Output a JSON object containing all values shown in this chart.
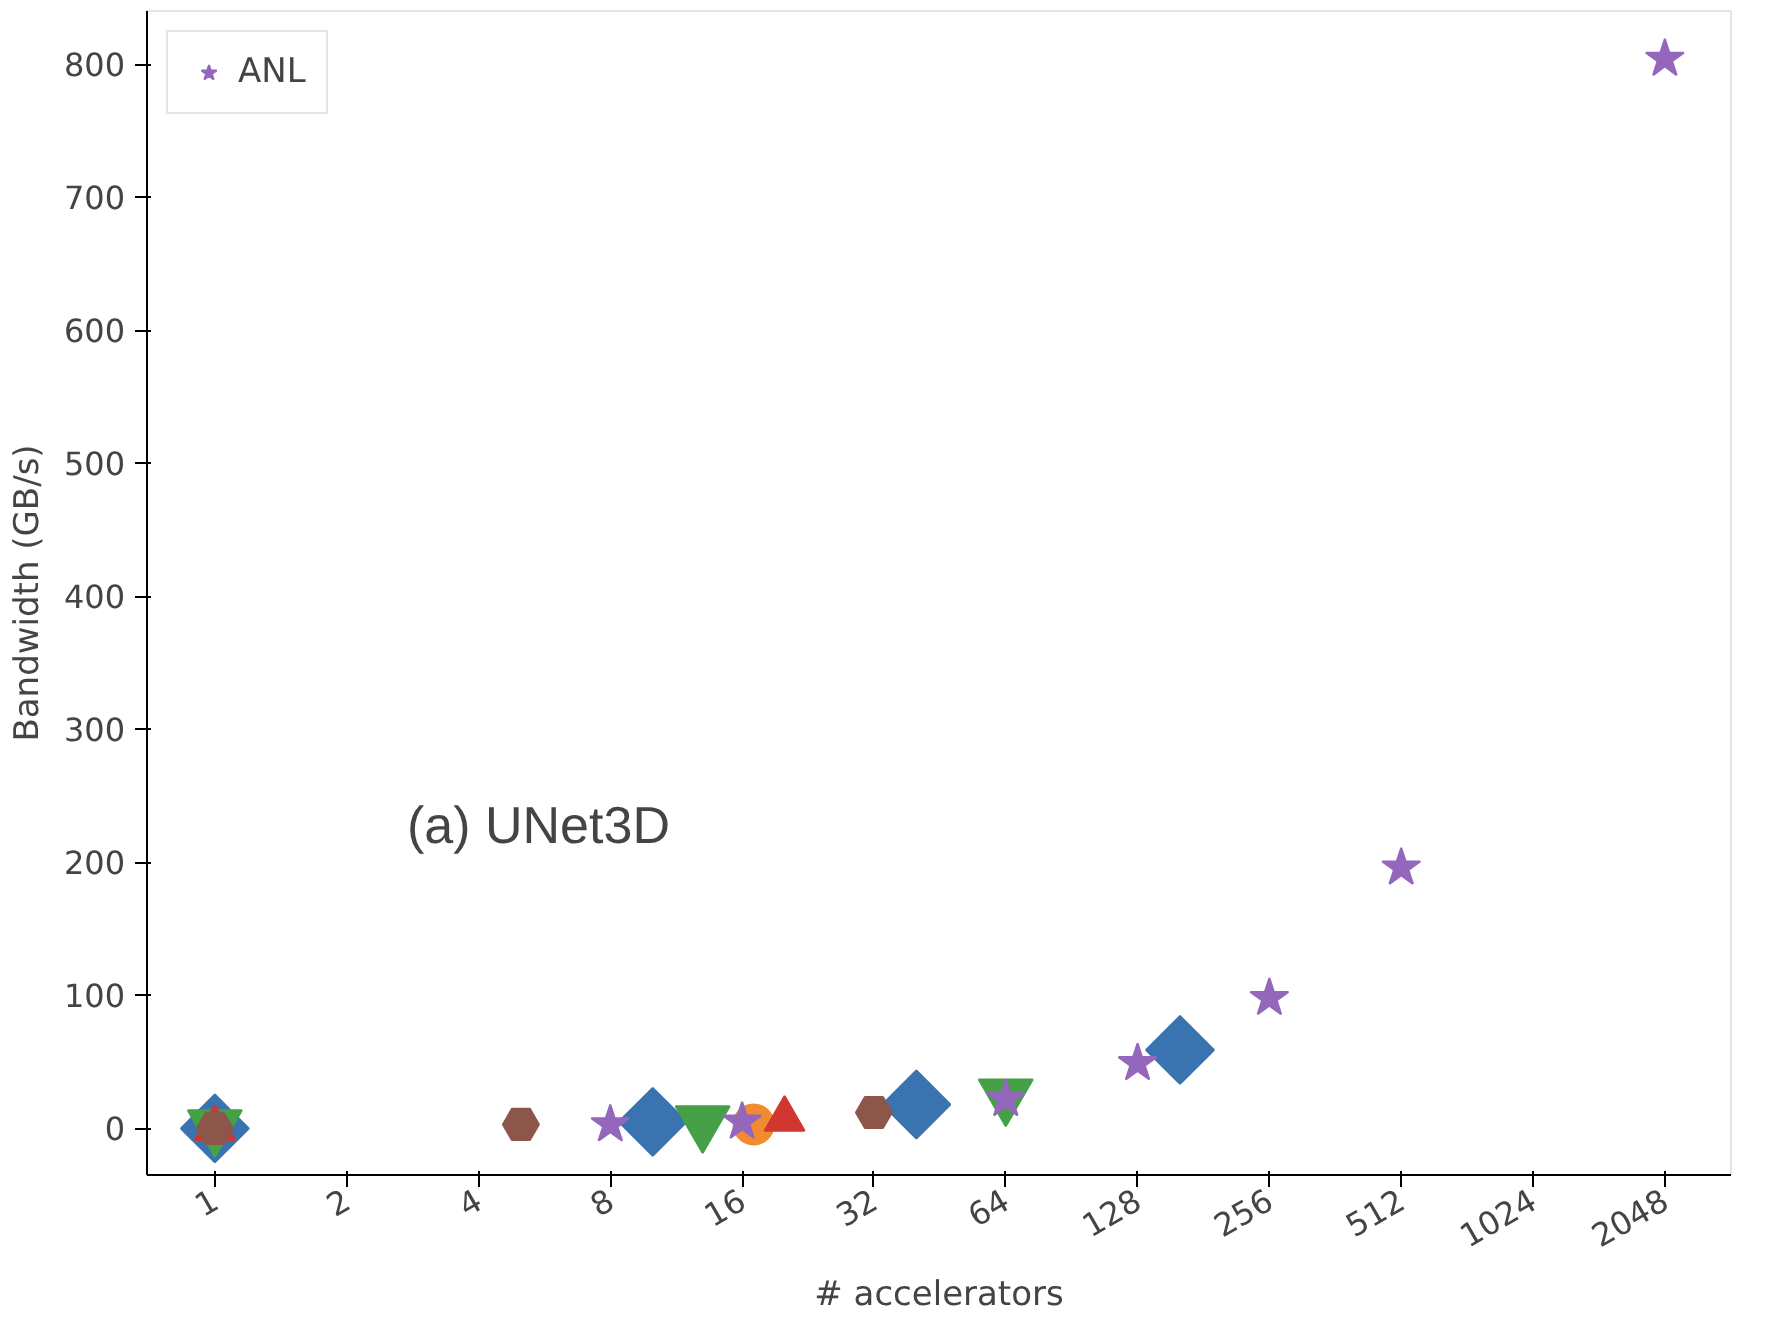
{
  "chart_data": {
    "type": "scatter",
    "xlabel": "# accelerators",
    "ylabel": "Bandwidth (GB/s)",
    "log": "x",
    "xlim": [
      0.7,
      2900
    ],
    "xticks": [
      1,
      2,
      4,
      8,
      16,
      32,
      64,
      128,
      256,
      512,
      1024,
      2048
    ],
    "ylim": [
      -35,
      840
    ],
    "yticks": [
      0,
      100,
      200,
      300,
      400,
      500,
      600,
      700,
      800
    ],
    "grid": false,
    "legend": "top left",
    "annotations": [
      "(a) UNet3D"
    ],
    "series": [
      {
        "color": "#3a74b0",
        "marker": "diamond",
        "x": [
          1,
          10,
          40,
          160
        ],
        "values": [
          0,
          5,
          18,
          59
        ]
      },
      {
        "color": "#f28b30",
        "marker": "circle",
        "x": [
          17
        ],
        "values": [
          3
        ]
      },
      {
        "color": "#45a046",
        "x": [
          1,
          13,
          64
        ],
        "values": [
          2,
          5,
          25
        ]
      },
      {
        "color": "#d0382f",
        "marker": "triangle",
        "x": [
          1,
          20
        ],
        "values": [
          0,
          7
        ]
      },
      {
        "name": "ANL",
        "color": "#9467bd",
        "marker": "star",
        "x": [
          8,
          16,
          64,
          128,
          256,
          512,
          2048
        ],
        "values": [
          3,
          5,
          22,
          49,
          98,
          196,
          804
        ]
      },
      {
        "color": "#8c564b",
        "x": [
          1,
          5,
          32
        ],
        "values": [
          0,
          3,
          12
        ]
      }
    ]
  }
}
